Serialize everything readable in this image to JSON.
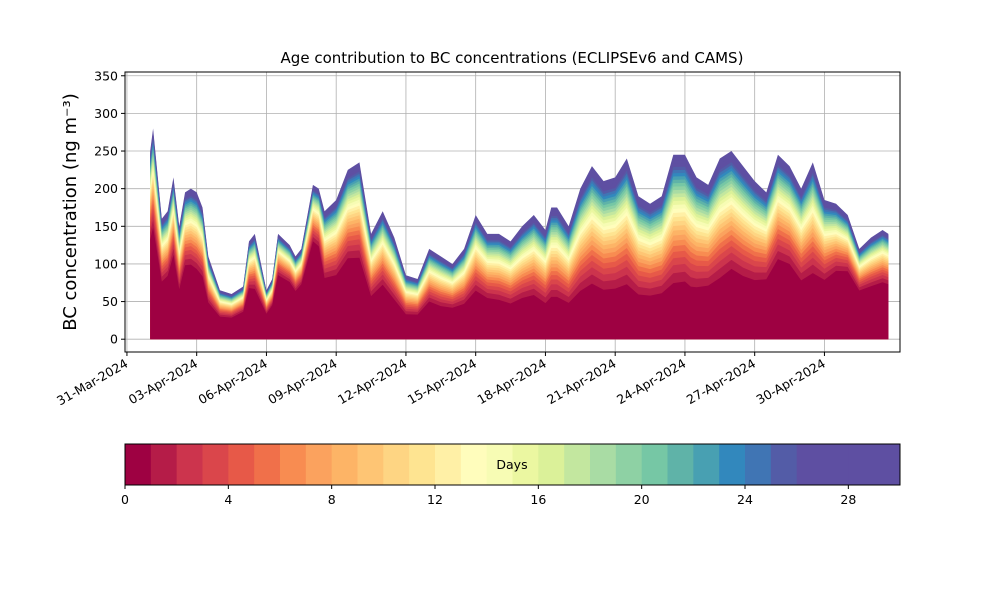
{
  "chart_data": {
    "type": "area",
    "title": "Age contribution to BC concentrations (ECLIPSEv6 and CAMS)",
    "ylabel": "BC concentration (ng m⁻³)",
    "ylim": [
      -17,
      355
    ],
    "yticks": [
      0,
      50,
      100,
      150,
      200,
      250,
      300,
      350
    ],
    "xlim": [
      "2024-03-30T22:00",
      "2024-05-03T06:00"
    ],
    "xticks": [
      "2024-03-31",
      "2024-04-03",
      "2024-04-06",
      "2024-04-09",
      "2024-04-12",
      "2024-04-15",
      "2024-04-18",
      "2024-04-21",
      "2024-04-24",
      "2024-04-27",
      "2024-04-30"
    ],
    "xtick_labels": [
      "31-Mar-2024",
      "03-Apr-2024",
      "06-Apr-2024",
      "09-Apr-2024",
      "12-Apr-2024",
      "15-Apr-2024",
      "18-Apr-2024",
      "21-Apr-2024",
      "24-Apr-2024",
      "27-Apr-2024",
      "30-Apr-2024"
    ],
    "grid": true,
    "n_age_bins": 30,
    "total": {
      "x": [
        "2024-04-01T00:00",
        "2024-04-01T03:00",
        "2024-04-01T06:00",
        "2024-04-01T12:00",
        "2024-04-01T18:00",
        "2024-04-02T00:00",
        "2024-04-02T06:00",
        "2024-04-02T12:00",
        "2024-04-02T18:00",
        "2024-04-03T00:00",
        "2024-04-03T06:00",
        "2024-04-03T12:00",
        "2024-04-04T00:00",
        "2024-04-04T12:00",
        "2024-04-05T00:00",
        "2024-04-05T06:00",
        "2024-04-05T12:00",
        "2024-04-06T00:00",
        "2024-04-06T06:00",
        "2024-04-06T12:00",
        "2024-04-07T00:00",
        "2024-04-07T06:00",
        "2024-04-07T12:00",
        "2024-04-08T00:00",
        "2024-04-08T06:00",
        "2024-04-08T12:00",
        "2024-04-09T00:00",
        "2024-04-09T12:00",
        "2024-04-10T00:00",
        "2024-04-10T12:00",
        "2024-04-11T00:00",
        "2024-04-11T12:00",
        "2024-04-12T00:00",
        "2024-04-12T12:00",
        "2024-04-13T00:00",
        "2024-04-13T12:00",
        "2024-04-14T00:00",
        "2024-04-14T12:00",
        "2024-04-15T00:00",
        "2024-04-15T12:00",
        "2024-04-16T00:00",
        "2024-04-16T12:00",
        "2024-04-17T00:00",
        "2024-04-17T12:00",
        "2024-04-18T00:00",
        "2024-04-18T06:00",
        "2024-04-18T12:00",
        "2024-04-19T00:00",
        "2024-04-19T12:00",
        "2024-04-20T00:00",
        "2024-04-20T12:00",
        "2024-04-21T00:00",
        "2024-04-21T12:00",
        "2024-04-22T00:00",
        "2024-04-22T12:00",
        "2024-04-23T00:00",
        "2024-04-23T12:00",
        "2024-04-24T00:00",
        "2024-04-24T06:00",
        "2024-04-24T12:00",
        "2024-04-25T00:00",
        "2024-04-25T12:00",
        "2024-04-26T00:00",
        "2024-04-26T12:00",
        "2024-04-27T00:00",
        "2024-04-27T12:00",
        "2024-04-28T00:00",
        "2024-04-28T12:00",
        "2024-04-29T00:00",
        "2024-04-29T12:00",
        "2024-04-30T00:00",
        "2024-04-30T12:00",
        "2024-05-01T00:00",
        "2024-05-01T12:00",
        "2024-05-02T00:00",
        "2024-05-02T12:00",
        "2024-05-02T18:00"
      ],
      "y": [
        250,
        280,
        240,
        160,
        170,
        215,
        150,
        195,
        200,
        195,
        175,
        110,
        65,
        60,
        70,
        130,
        140,
        65,
        80,
        140,
        125,
        110,
        120,
        205,
        200,
        170,
        185,
        225,
        235,
        140,
        170,
        135,
        85,
        80,
        120,
        110,
        100,
        120,
        165,
        140,
        140,
        130,
        150,
        165,
        145,
        175,
        175,
        150,
        200,
        230,
        210,
        215,
        240,
        190,
        180,
        190,
        245,
        245,
        230,
        215,
        205,
        240,
        250,
        230,
        210,
        195,
        245,
        230,
        200,
        235,
        185,
        180,
        165,
        120,
        135,
        145,
        140
      ]
    },
    "fraction_day0": [
      0.46,
      0.46,
      0.45,
      0.4,
      0.42,
      0.45,
      0.36,
      0.43,
      0.42,
      0.4,
      0.4,
      0.36,
      0.38,
      0.4,
      0.45,
      0.45,
      0.4,
      0.45,
      0.5,
      0.55,
      0.55,
      0.52,
      0.55,
      0.58,
      0.56,
      0.4,
      0.38,
      0.4,
      0.38,
      0.32,
      0.34,
      0.3,
      0.3,
      0.32,
      0.33,
      0.31,
      0.33,
      0.3,
      0.3,
      0.3,
      0.28,
      0.27,
      0.27,
      0.26,
      0.23,
      0.22,
      0.22,
      0.22,
      0.22,
      0.22,
      0.21,
      0.21,
      0.2,
      0.21,
      0.22,
      0.22,
      0.2,
      0.21,
      0.2,
      0.22,
      0.25,
      0.24,
      0.28,
      0.27,
      0.28,
      0.32,
      0.35,
      0.35,
      0.3,
      0.28,
      0.34,
      0.43,
      0.48,
      0.47,
      0.45,
      0.45,
      0.45
    ]
  },
  "colorbar": {
    "label": "Days",
    "vmin": 0,
    "vmax": 30,
    "ticks": [
      "0",
      "4",
      "8",
      "12",
      "16",
      "20",
      "24",
      "28"
    ],
    "colors": [
      "#9e0142",
      "#b51c48",
      "#cc344d",
      "#da464b",
      "#e75948",
      "#f0704a",
      "#f88c51",
      "#fba25e",
      "#fdb466",
      "#fec574",
      "#fed583",
      "#fee491",
      "#fff0a6",
      "#fffdbc",
      "#f7fcb4",
      "#ebf7a1",
      "#dbf199",
      "#c3e79f",
      "#a9dca4",
      "#8ed1a4",
      "#76c7a5",
      "#5fb3a8",
      "#48a0b2",
      "#3288bd",
      "#4075b4",
      "#535ca7",
      "#5e4fa2",
      "#5e4fa2",
      "#5e4fa2",
      "#5e4fa2"
    ]
  }
}
